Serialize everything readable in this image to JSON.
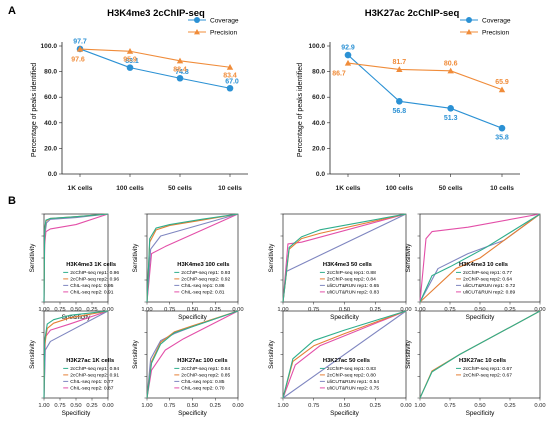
{
  "panel_labels": {
    "a": "A",
    "b": "B"
  },
  "colors": {
    "coverage": "#2b91d4",
    "precision": "#f08c3a",
    "roc": [
      "#2fae8c",
      "#e57f35",
      "#7f86c0",
      "#e34fa8"
    ]
  },
  "chart_data": [
    {
      "type": "line",
      "title": "H3K4me3 2cChIP-seq",
      "xlabel": "",
      "ylabel": "Percentage of peaks identified",
      "categories": [
        "1K cells",
        "100 cells",
        "50 cells",
        "10 cells"
      ],
      "ylim": [
        0,
        100
      ],
      "yticks": [
        "0.0",
        "20.0",
        "40.0",
        "60.0",
        "80.0",
        "100.0"
      ],
      "legend": "top-right",
      "series": [
        {
          "name": "Coverage",
          "marker": "circle",
          "values": [
            97.7,
            83.1,
            74.8,
            67.0
          ],
          "labels": [
            "97.7",
            "83.1",
            "74.8",
            "67.0"
          ]
        },
        {
          "name": "Precision",
          "marker": "triangle",
          "values": [
            97.6,
            95.9,
            88.4,
            83.4
          ],
          "labels": [
            "97.6",
            "95.9",
            "88.4",
            "83.4"
          ]
        }
      ]
    },
    {
      "type": "line",
      "title": "H3K27ac 2cChIP-seq",
      "xlabel": "",
      "ylabel": "Percentage of peaks identified",
      "categories": [
        "1K cells",
        "100 cells",
        "50 cells",
        "10 cells"
      ],
      "ylim": [
        0,
        100
      ],
      "yticks": [
        "0.0",
        "20.0",
        "40.0",
        "60.0",
        "80.0",
        "100.0"
      ],
      "legend": "top-right",
      "series": [
        {
          "name": "Coverage",
          "marker": "circle",
          "values": [
            92.9,
            56.8,
            51.3,
            35.8
          ],
          "labels": [
            "92.9",
            "56.8",
            "51.3",
            "35.8"
          ]
        },
        {
          "name": "Precision",
          "marker": "triangle",
          "values": [
            86.7,
            81.7,
            80.6,
            65.9
          ],
          "labels": [
            "86.7",
            "81.7",
            "80.6",
            "65.9"
          ]
        }
      ]
    },
    {
      "type": "line",
      "title": "H3K4me3 1K cells",
      "xlabel": "Specificity",
      "ylabel": "Sensitivity",
      "xlim": [
        1.0,
        0.0
      ],
      "ylim": [
        0.0,
        1.0
      ],
      "xticks": [
        "1.00",
        "0.75",
        "0.50",
        "0.25",
        "0.00"
      ],
      "yticks": [
        "0.00",
        "0.25",
        "0.50",
        "0.75",
        "1.00"
      ],
      "legend": "bottom-right",
      "series": [
        {
          "name": "2cChIP-seq rep1: 0.96",
          "x": [
            1.0,
            0.99,
            0.97,
            0.9,
            0.5,
            0.0
          ],
          "y": [
            0.0,
            0.82,
            0.93,
            0.95,
            0.97,
            1.0
          ]
        },
        {
          "name": "2cChIP-seq rep2: 0.96",
          "x": [
            1.0,
            0.99,
            0.97,
            0.9,
            0.5,
            0.0
          ],
          "y": [
            0.0,
            0.8,
            0.92,
            0.95,
            0.97,
            1.0
          ]
        },
        {
          "name": "ChIL-seq rep1: 0.95",
          "x": [
            1.0,
            0.99,
            0.96,
            0.9,
            0.5,
            0.0
          ],
          "y": [
            0.0,
            0.75,
            0.9,
            0.94,
            0.96,
            1.0
          ]
        },
        {
          "name": "ChIL-seq rep2: 0.91",
          "x": [
            1.0,
            0.99,
            0.97,
            0.9,
            0.5,
            0.0
          ],
          "y": [
            0.0,
            0.65,
            0.8,
            0.83,
            0.88,
            1.0
          ]
        }
      ]
    },
    {
      "type": "line",
      "title": "H3K4me3 100 cells",
      "xlabel": "Specificity",
      "ylabel": "Sensitivity",
      "xlim": [
        1.0,
        0.0
      ],
      "ylim": [
        0.0,
        1.0
      ],
      "xticks": [
        "1.00",
        "0.75",
        "0.50",
        "0.25",
        "0.00"
      ],
      "yticks": [
        "0.00",
        "0.25",
        "0.50",
        "0.75",
        "1.00"
      ],
      "legend": "bottom-right",
      "series": [
        {
          "name": "2cChIP-seq rep1: 0.93",
          "x": [
            1.0,
            0.97,
            0.9,
            0.75,
            0.4,
            0.0
          ],
          "y": [
            0.0,
            0.72,
            0.84,
            0.88,
            0.94,
            1.0
          ]
        },
        {
          "name": "2cChIP-seq rep2: 0.92",
          "x": [
            1.0,
            0.97,
            0.9,
            0.75,
            0.4,
            0.0
          ],
          "y": [
            0.0,
            0.68,
            0.82,
            0.87,
            0.93,
            1.0
          ]
        },
        {
          "name": "ChIL-seq rep1: 0.86",
          "x": [
            1.0,
            0.96,
            0.85,
            0.0
          ],
          "y": [
            0.0,
            0.6,
            0.75,
            1.0
          ]
        },
        {
          "name": "ChIL-seq rep2: 0.81",
          "x": [
            1.0,
            0.95,
            0.8,
            0.0
          ],
          "y": [
            0.0,
            0.55,
            0.63,
            1.0
          ]
        }
      ]
    },
    {
      "type": "line",
      "title": "H3K4me3 50 cells",
      "xlabel": "Specificity",
      "ylabel": "Sensitivity",
      "xlim": [
        1.0,
        0.0
      ],
      "ylim": [
        0.0,
        1.0
      ],
      "xticks": [
        "1.00",
        "0.75",
        "0.50",
        "0.25",
        "0.00"
      ],
      "yticks": [
        "0.00",
        "0.25",
        "0.50",
        "0.75",
        "1.00"
      ],
      "legend": "bottom-right",
      "series": [
        {
          "name": "2cChIP-seq rep1: 0.88",
          "x": [
            1.0,
            0.95,
            0.85,
            0.7,
            0.0
          ],
          "y": [
            0.0,
            0.62,
            0.74,
            0.82,
            1.0
          ]
        },
        {
          "name": "2cChIP-seq rep2: 0.84",
          "x": [
            1.0,
            0.95,
            0.85,
            0.7,
            0.0
          ],
          "y": [
            0.0,
            0.6,
            0.72,
            0.78,
            1.0
          ]
        },
        {
          "name": "uliCUT&RUN rep1: 0.65",
          "x": [
            1.0,
            0.97,
            0.0
          ],
          "y": [
            0.0,
            0.35,
            1.0
          ]
        },
        {
          "name": "uliCUT&RUN rep2: 0.83",
          "x": [
            1.0,
            0.96,
            0.85,
            0.0
          ],
          "y": [
            0.0,
            0.66,
            0.68,
            1.0
          ]
        }
      ]
    },
    {
      "type": "line",
      "title": "H3K4me3 10 cells",
      "xlabel": "Specificity",
      "ylabel": "Sensitivity",
      "xlim": [
        1.0,
        0.0
      ],
      "ylim": [
        0.0,
        1.0
      ],
      "xticks": [
        "1.00",
        "0.75",
        "0.50",
        "0.25",
        "0.00"
      ],
      "yticks": [
        "0.00",
        "0.25",
        "0.50",
        "0.75",
        "1.00"
      ],
      "legend": "bottom-right",
      "series": [
        {
          "name": "2cChIP-seq rep1: 0.77",
          "x": [
            1.0,
            0.9,
            0.75,
            0.45,
            0.0
          ],
          "y": [
            0.0,
            0.3,
            0.4,
            0.62,
            1.0
          ]
        },
        {
          "name": "2cChIP-seq rep2: 0.64",
          "x": [
            1.0,
            0.7,
            0.5,
            0.0
          ],
          "y": [
            0.0,
            0.38,
            0.5,
            1.0
          ]
        },
        {
          "name": "uliCUT&RUN rep1: 0.72",
          "x": [
            1.0,
            0.85,
            0.6,
            0.3,
            0.0
          ],
          "y": [
            0.0,
            0.38,
            0.55,
            0.7,
            1.0
          ]
        },
        {
          "name": "uliCUT&RUN rep2: 0.89",
          "x": [
            1.0,
            0.95,
            0.9,
            0.6,
            0.0
          ],
          "y": [
            0.0,
            0.72,
            0.8,
            0.85,
            1.0
          ]
        }
      ]
    },
    {
      "type": "line",
      "title": "H3K27ac 1K cells",
      "xlabel": "Specificity",
      "ylabel": "Sensitivity",
      "xlim": [
        1.0,
        0.0
      ],
      "ylim": [
        0.0,
        1.0
      ],
      "xticks": [
        "1.00",
        "0.75",
        "0.50",
        "0.25",
        "0.00"
      ],
      "yticks": [
        "0.00",
        "0.25",
        "0.50",
        "0.75",
        "1.00"
      ],
      "legend": "bottom-right",
      "series": [
        {
          "name": "2cChIP-seq rep1: 0.94",
          "x": [
            1.0,
            0.99,
            0.95,
            0.85,
            0.6,
            0.0
          ],
          "y": [
            0.0,
            0.65,
            0.85,
            0.9,
            0.95,
            1.0
          ]
        },
        {
          "name": "2cChIP-seq rep2: 0.91",
          "x": [
            1.0,
            0.99,
            0.95,
            0.85,
            0.6,
            0.0
          ],
          "y": [
            0.0,
            0.6,
            0.8,
            0.86,
            0.92,
            1.0
          ]
        },
        {
          "name": "ChIL-seq rep1: 0.77",
          "x": [
            1.0,
            0.98,
            0.9,
            0.0
          ],
          "y": [
            0.0,
            0.55,
            0.65,
            1.0
          ]
        },
        {
          "name": "ChIL-seq rep2: 0.87",
          "x": [
            1.0,
            0.98,
            0.9,
            0.6,
            0.0
          ],
          "y": [
            0.0,
            0.7,
            0.78,
            0.85,
            1.0
          ]
        }
      ]
    },
    {
      "type": "line",
      "title": "H3K27ac 100 cells",
      "xlabel": "Specificity",
      "ylabel": "Sensitivity",
      "xlim": [
        1.0,
        0.0
      ],
      "ylim": [
        0.0,
        1.0
      ],
      "xticks": [
        "1.00",
        "0.75",
        "0.50",
        "0.25",
        "0.00"
      ],
      "yticks": [
        "0.00",
        "0.25",
        "0.50",
        "0.75",
        "1.00"
      ],
      "legend": "bottom-right",
      "series": [
        {
          "name": "2cChIP-seq rep1: 0.84",
          "x": [
            1.0,
            0.95,
            0.85,
            0.7,
            0.5,
            0.0
          ],
          "y": [
            0.0,
            0.4,
            0.62,
            0.75,
            0.82,
            1.0
          ]
        },
        {
          "name": "2cChIP-seq rep2: 0.85",
          "x": [
            1.0,
            0.95,
            0.85,
            0.7,
            0.5,
            0.0
          ],
          "y": [
            0.0,
            0.42,
            0.64,
            0.76,
            0.83,
            1.0
          ]
        },
        {
          "name": "ChIL-seq rep1: 0.85",
          "x": [
            1.0,
            0.96,
            0.85,
            0.7,
            0.5,
            0.0
          ],
          "y": [
            0.0,
            0.45,
            0.66,
            0.74,
            0.82,
            1.0
          ]
        },
        {
          "name": "ChIL-seq rep2: 0.70",
          "x": [
            1.0,
            0.95,
            0.8,
            0.6,
            0.0
          ],
          "y": [
            0.0,
            0.32,
            0.55,
            0.68,
            1.0
          ]
        }
      ]
    },
    {
      "type": "line",
      "title": "H3K27ac 50 cells",
      "xlabel": "Specificity",
      "ylabel": "Sensitivity",
      "xlim": [
        1.0,
        0.0
      ],
      "ylim": [
        0.0,
        1.0
      ],
      "xticks": [
        "1.00",
        "0.75",
        "0.50",
        "0.25",
        "0.00"
      ],
      "yticks": [
        "0.00",
        "0.25",
        "0.50",
        "0.75",
        "1.00"
      ],
      "legend": "bottom-right",
      "series": [
        {
          "name": "2cChIP-seq rep1: 0.83",
          "x": [
            1.0,
            0.92,
            0.75,
            0.5,
            0.0
          ],
          "y": [
            0.0,
            0.45,
            0.66,
            0.78,
            1.0
          ]
        },
        {
          "name": "2cChIP-seq rep2: 0.80",
          "x": [
            1.0,
            0.92,
            0.75,
            0.5,
            0.0
          ],
          "y": [
            0.0,
            0.42,
            0.6,
            0.74,
            1.0
          ]
        },
        {
          "name": "uliCUT&RUN rep1: 0.54",
          "x": [
            1.0,
            0.0
          ],
          "y": [
            0.0,
            1.0
          ]
        },
        {
          "name": "uliCUT&RUN rep2: 0.75",
          "x": [
            1.0,
            0.9,
            0.7,
            0.0
          ],
          "y": [
            0.0,
            0.38,
            0.6,
            1.0
          ]
        }
      ]
    },
    {
      "type": "line",
      "title": "H3K27ac 10 cells",
      "xlabel": "Specificity",
      "ylabel": "Sensitivity",
      "xlim": [
        1.0,
        0.0
      ],
      "ylim": [
        0.0,
        1.0
      ],
      "xticks": [
        "1.00",
        "0.75",
        "0.50",
        "0.25",
        "0.00"
      ],
      "yticks": [
        "0.00",
        "0.25",
        "0.50",
        "0.75",
        "1.00"
      ],
      "legend": "bottom-right",
      "series": [
        {
          "name": "2cChIP-seq rep1: 0.67",
          "x": [
            1.0,
            0.9,
            0.67,
            0.0
          ],
          "y": [
            0.0,
            0.3,
            0.5,
            1.0
          ]
        },
        {
          "name": "2cChIP-seq rep2: 0.67",
          "x": [
            1.0,
            0.9,
            0.67,
            0.0
          ],
          "y": [
            0.0,
            0.31,
            0.5,
            1.0
          ]
        }
      ]
    }
  ]
}
